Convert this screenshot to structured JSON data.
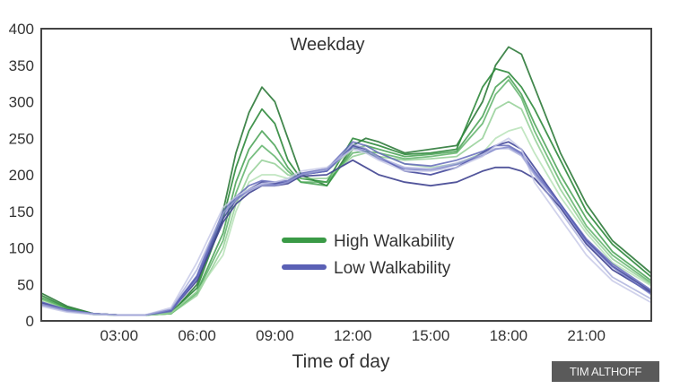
{
  "chart_data": {
    "type": "line",
    "title": "Weekday",
    "xlabel": "Time of day",
    "ylabel": "",
    "xlim": [
      0,
      23.5
    ],
    "ylim": [
      0,
      400
    ],
    "grid": false,
    "legend_position": "center",
    "xticks": [
      {
        "value": 3,
        "label": "03:00"
      },
      {
        "value": 6,
        "label": "06:00"
      },
      {
        "value": 9,
        "label": "09:00"
      },
      {
        "value": 12,
        "label": "12:00"
      },
      {
        "value": 15,
        "label": "15:00"
      },
      {
        "value": 18,
        "label": "18:00"
      },
      {
        "value": 21,
        "label": "21:00"
      }
    ],
    "yticks": [
      0,
      50,
      100,
      150,
      200,
      250,
      300,
      350,
      400
    ],
    "legend": [
      {
        "label": "High Walkability",
        "color": "#3a9a46"
      },
      {
        "label": "Low Walkability",
        "color": "#5a60b5"
      }
    ],
    "x": [
      0,
      1,
      2,
      3,
      4,
      5,
      6,
      7,
      7.5,
      8,
      8.5,
      9,
      9.5,
      10,
      11,
      12,
      12.5,
      13,
      14,
      15,
      16,
      17,
      17.5,
      18,
      18.5,
      19,
      20,
      21,
      22,
      23.5
    ],
    "series": [
      {
        "name": "High Walkability",
        "color": "#2e7a3a",
        "opacity": 0.9,
        "values": [
          38,
          20,
          10,
          8,
          8,
          10,
          50,
          150,
          230,
          285,
          320,
          300,
          250,
          200,
          185,
          240,
          250,
          245,
          230,
          235,
          240,
          300,
          350,
          375,
          365,
          320,
          230,
          160,
          110,
          65
        ]
      },
      {
        "name": "High Walkability",
        "color": "#2f8a3c",
        "opacity": 0.9,
        "values": [
          35,
          18,
          10,
          8,
          8,
          12,
          45,
          140,
          210,
          260,
          290,
          270,
          220,
          195,
          190,
          250,
          245,
          240,
          228,
          230,
          235,
          320,
          345,
          340,
          320,
          290,
          220,
          150,
          105,
          60
        ]
      },
      {
        "name": "High Walkability",
        "color": "#3a9a46",
        "opacity": 0.8,
        "values": [
          32,
          17,
          9,
          8,
          8,
          10,
          40,
          120,
          190,
          235,
          260,
          240,
          210,
          190,
          185,
          235,
          240,
          235,
          225,
          228,
          232,
          280,
          320,
          335,
          310,
          270,
          200,
          140,
          95,
          55
        ]
      },
      {
        "name": "High Walkability",
        "color": "#4aa855",
        "opacity": 0.75,
        "values": [
          30,
          16,
          9,
          8,
          8,
          10,
          38,
          110,
          175,
          220,
          240,
          225,
          205,
          190,
          190,
          230,
          232,
          230,
          222,
          225,
          230,
          270,
          310,
          330,
          305,
          260,
          190,
          130,
          90,
          52
        ]
      },
      {
        "name": "High Walkability",
        "color": "#7cc47f",
        "opacity": 0.7,
        "values": [
          30,
          15,
          9,
          8,
          8,
          10,
          35,
          100,
          160,
          200,
          220,
          215,
          200,
          195,
          195,
          225,
          230,
          225,
          220,
          222,
          225,
          250,
          290,
          300,
          290,
          250,
          180,
          125,
          85,
          50
        ]
      },
      {
        "name": "High Walkability",
        "color": "#a8dca8",
        "opacity": 0.7,
        "values": [
          28,
          15,
          9,
          8,
          8,
          11,
          40,
          90,
          150,
          190,
          200,
          200,
          195,
          200,
          205,
          235,
          240,
          230,
          215,
          210,
          215,
          230,
          250,
          260,
          265,
          230,
          170,
          120,
          80,
          48
        ]
      },
      {
        "name": "Low Walkability",
        "color": "#44489a",
        "opacity": 0.9,
        "values": [
          25,
          15,
          10,
          8,
          8,
          15,
          60,
          140,
          165,
          180,
          190,
          188,
          190,
          200,
          205,
          240,
          235,
          225,
          205,
          200,
          210,
          230,
          240,
          245,
          235,
          210,
          160,
          110,
          75,
          40
        ]
      },
      {
        "name": "Low Walkability",
        "color": "#3f4390",
        "opacity": 0.9,
        "values": [
          24,
          14,
          10,
          8,
          8,
          14,
          55,
          135,
          160,
          175,
          185,
          185,
          188,
          198,
          200,
          220,
          210,
          200,
          190,
          185,
          190,
          205,
          210,
          210,
          205,
          195,
          155,
          105,
          70,
          38
        ]
      },
      {
        "name": "Low Walkability",
        "color": "#5a60b5",
        "opacity": 0.8,
        "values": [
          26,
          15,
          10,
          8,
          8,
          15,
          62,
          150,
          170,
          185,
          192,
          190,
          192,
          202,
          208,
          245,
          240,
          230,
          215,
          212,
          220,
          232,
          240,
          240,
          230,
          205,
          160,
          112,
          78,
          42
        ]
      },
      {
        "name": "Low Walkability",
        "color": "#6a70c2",
        "opacity": 0.75,
        "values": [
          22,
          13,
          9,
          8,
          8,
          13,
          58,
          145,
          168,
          178,
          188,
          186,
          190,
          200,
          205,
          238,
          232,
          222,
          208,
          206,
          214,
          226,
          235,
          238,
          228,
          202,
          158,
          108,
          74,
          36
        ]
      },
      {
        "name": "Low Walkability",
        "color": "#c4c7e6",
        "opacity": 0.8,
        "values": [
          20,
          12,
          9,
          8,
          8,
          18,
          80,
          155,
          170,
          180,
          188,
          190,
          195,
          205,
          210,
          235,
          230,
          220,
          205,
          205,
          210,
          225,
          240,
          250,
          235,
          190,
          140,
          90,
          55,
          25
        ]
      },
      {
        "name": "Low Walkability",
        "color": "#9da2d6",
        "opacity": 0.7,
        "values": [
          23,
          14,
          10,
          8,
          8,
          16,
          70,
          148,
          165,
          178,
          185,
          185,
          190,
          200,
          207,
          242,
          236,
          224,
          210,
          208,
          216,
          228,
          236,
          236,
          226,
          200,
          150,
          100,
          60,
          30
        ]
      }
    ]
  },
  "watermark": "TIM ALTHOFF"
}
